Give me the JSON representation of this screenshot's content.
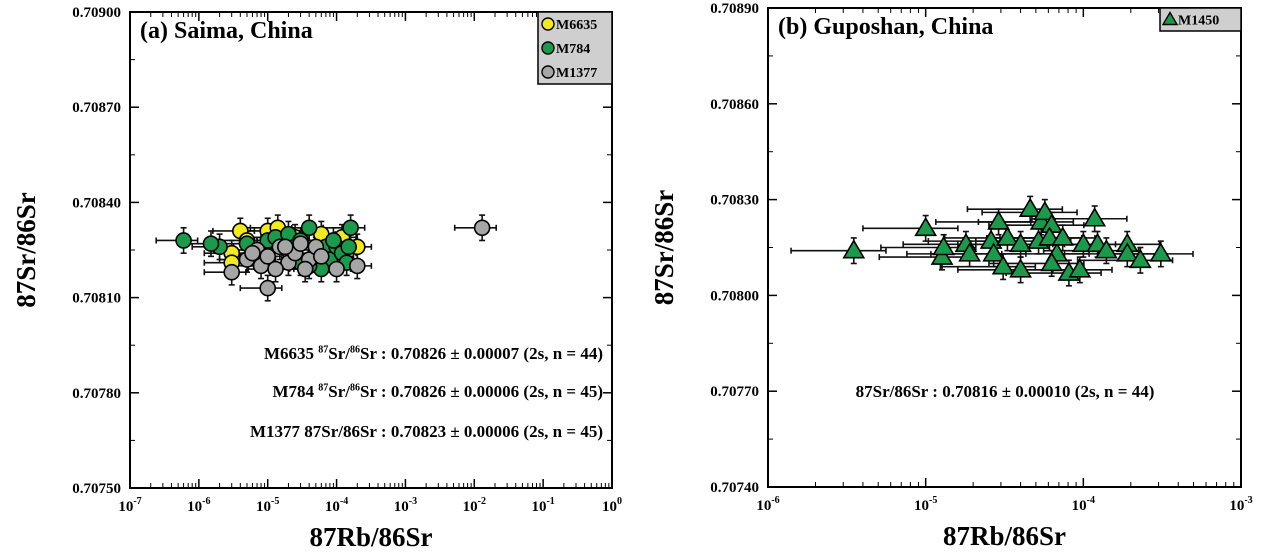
{
  "chart_data": [
    {
      "type": "scatter",
      "title": "(a) Saima, China",
      "xlabel": "87Rb/86Sr",
      "ylabel": "87Sr/86Sr",
      "xscale": "log",
      "xlim_exp": [
        -7,
        0
      ],
      "x_tick_exponents": [
        -7,
        -6,
        -5,
        -4,
        -3,
        -2,
        -1,
        0
      ],
      "ylim": [
        0.7075,
        0.709
      ],
      "y_ticks": [
        "0.70750",
        "0.70780",
        "0.70810",
        "0.70840",
        "0.70870",
        "0.70900"
      ],
      "legend_position": "top-right",
      "series": [
        {
          "name": "M6635",
          "marker": "circle",
          "color": "#f2ea1c",
          "yerr": 4e-05,
          "xerr_rel": 0.6,
          "points": [
            [
              3e-06,
              0.70824
            ],
            [
              4e-06,
              0.70831
            ],
            [
              1e-05,
              0.70831
            ],
            [
              1.4e-05,
              0.70832
            ],
            [
              2.5e-05,
              0.70829
            ],
            [
              3e-06,
              0.70821
            ],
            [
              7e-06,
              0.70825
            ],
            [
              5e-06,
              0.70828
            ],
            [
              0.00012,
              0.70829
            ],
            [
              0.0002,
              0.70826
            ],
            [
              0.00011,
              0.70823
            ],
            [
              2e-05,
              0.70825
            ],
            [
              8e-06,
              0.70822
            ],
            [
              6e-05,
              0.7083
            ]
          ]
        },
        {
          "name": "M784",
          "marker": "circle",
          "color": "#1a9a4a",
          "yerr": 4e-05,
          "xerr_rel": 0.6,
          "points": [
            [
              6e-07,
              0.70828
            ],
            [
              2e-06,
              0.70826
            ],
            [
              1.5e-06,
              0.70827
            ],
            [
              5e-06,
              0.70827
            ],
            [
              1e-05,
              0.70828
            ],
            [
              1.3e-05,
              0.70829
            ],
            [
              2e-05,
              0.7083
            ],
            [
              3e-05,
              0.70828
            ],
            [
              4e-05,
              0.70832
            ],
            [
              5e-05,
              0.70825
            ],
            [
              7e-05,
              0.70826
            ],
            [
              8e-05,
              0.70822
            ],
            [
              0.0001,
              0.70826
            ],
            [
              0.00012,
              0.70824
            ],
            [
              0.00015,
              0.70826
            ],
            [
              0.00016,
              0.70832
            ],
            [
              6e-05,
              0.70819
            ],
            [
              4e-05,
              0.7082
            ],
            [
              3e-05,
              0.70821
            ],
            [
              9e-05,
              0.70828
            ],
            [
              0.00014,
              0.70821
            ],
            [
              2.5e-05,
              0.70826
            ]
          ]
        },
        {
          "name": "M1377",
          "marker": "circle",
          "color": "#a6a6a6",
          "yerr": 4e-05,
          "xerr_rel": 0.6,
          "points": [
            [
              0.013,
              0.70832
            ],
            [
              3e-06,
              0.70818
            ],
            [
              1e-05,
              0.70813
            ],
            [
              5e-06,
              0.70822
            ],
            [
              7e-06,
              0.70825
            ],
            [
              8e-06,
              0.7082
            ],
            [
              1e-05,
              0.70823
            ],
            [
              1.5e-05,
              0.70826
            ],
            [
              2e-05,
              0.70821
            ],
            [
              2.5e-05,
              0.70824
            ],
            [
              3e-05,
              0.70827
            ],
            [
              4e-05,
              0.70822
            ],
            [
              5e-05,
              0.70826
            ],
            [
              1.3e-05,
              0.70819
            ],
            [
              6e-06,
              0.70824
            ],
            [
              0.0001,
              0.70819
            ],
            [
              0.0002,
              0.7082
            ],
            [
              3.5e-05,
              0.70819
            ],
            [
              1.8e-05,
              0.70826
            ],
            [
              6e-05,
              0.70823
            ]
          ]
        }
      ],
      "annotations": [
        "M6635 87Sr/86Sr : 0.70826 ± 0.00007 (2s, n = 44)",
        "M784 87Sr/86Sr : 0.70826 ± 0.00006 (2s, n = 45)",
        "M1377 87Sr/86Sr : 0.70823 ± 0.00006 (2s, n = 45)"
      ]
    },
    {
      "type": "scatter",
      "title": "(b) Guposhan, China",
      "xlabel": "87Rb/86Sr",
      "ylabel": "87Sr/86Sr",
      "xscale": "log",
      "xlim_exp": [
        -6,
        -3
      ],
      "x_tick_exponents": [
        -6,
        -5,
        -4,
        -3
      ],
      "ylim": [
        0.7074,
        0.7089
      ],
      "y_ticks": [
        "0.70740",
        "0.70770",
        "0.70800",
        "0.70830",
        "0.70860",
        "0.70890"
      ],
      "legend_position": "top-right",
      "series": [
        {
          "name": "M1450",
          "marker": "triangle",
          "color": "#1a9a4a",
          "yerr": 4e-05,
          "xerr_rel": 0.6,
          "points": [
            [
              3.5e-06,
              0.70814
            ],
            [
              1e-05,
              0.70821
            ],
            [
              1.27e-05,
              0.70812
            ],
            [
              1.3e-05,
              0.70815
            ],
            [
              1.8e-05,
              0.70816
            ],
            [
              1.9e-05,
              0.70813
            ],
            [
              2.6e-05,
              0.70817
            ],
            [
              2.7e-05,
              0.70813
            ],
            [
              2.9e-05,
              0.70823
            ],
            [
              3.1e-05,
              0.70809
            ],
            [
              3.3e-05,
              0.70818
            ],
            [
              4e-05,
              0.70816
            ],
            [
              4e-05,
              0.70808
            ],
            [
              4.6e-05,
              0.70827
            ],
            [
              5.2e-05,
              0.70817
            ],
            [
              5.4e-05,
              0.70823
            ],
            [
              5.7e-05,
              0.70826
            ],
            [
              6.3e-05,
              0.70822
            ],
            [
              6.1e-05,
              0.70818
            ],
            [
              6.8e-05,
              0.70813
            ],
            [
              6.3e-05,
              0.7081
            ],
            [
              7.4e-05,
              0.70818
            ],
            [
              8.1e-05,
              0.70807
            ],
            [
              9.5e-05,
              0.70808
            ],
            [
              0.0001,
              0.70816
            ],
            [
              0.000118,
              0.70824
            ],
            [
              0.000123,
              0.70816
            ],
            [
              0.00014,
              0.70814
            ],
            [
              0.00019,
              0.70816
            ],
            [
              0.00019,
              0.70813
            ],
            [
              0.00023,
              0.70811
            ],
            [
              0.00031,
              0.70813
            ]
          ]
        }
      ],
      "annotations": [
        "87Sr/86Sr : 0.70816 ± 0.00010 (2s, n = 44)"
      ]
    }
  ]
}
